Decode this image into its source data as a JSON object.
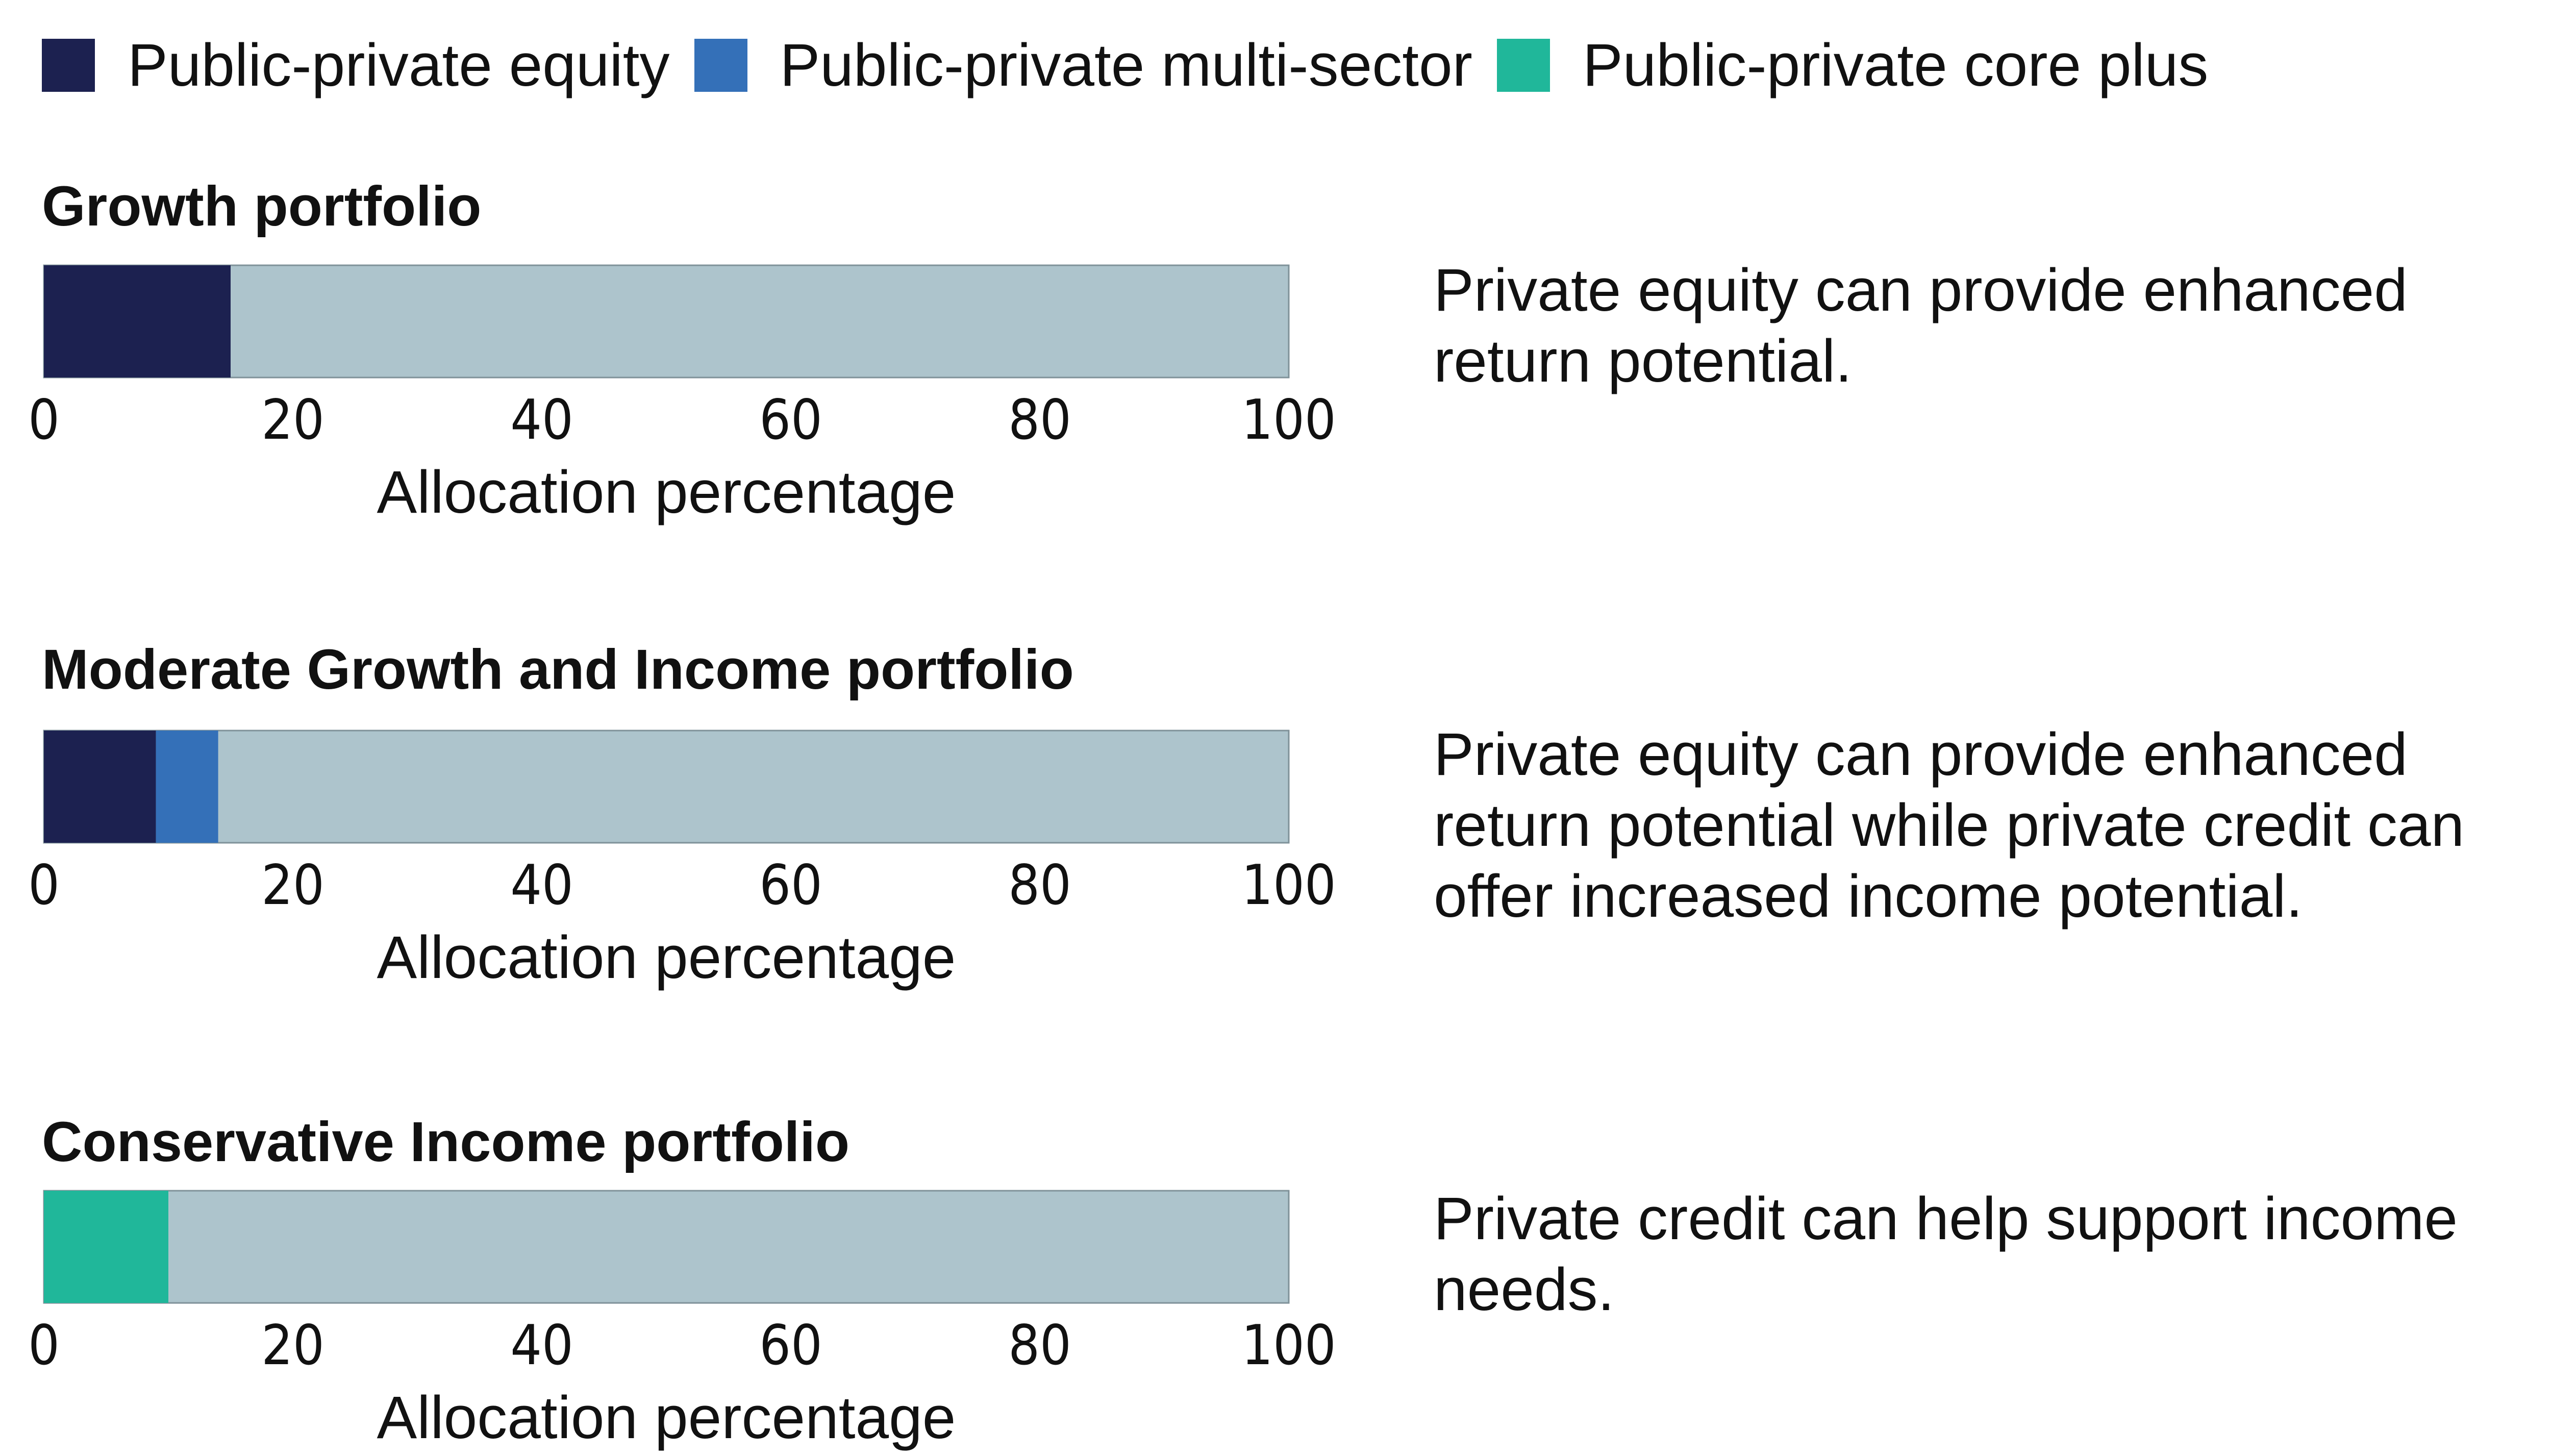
{
  "legend": {
    "items": [
      {
        "label": "Public-private equity",
        "color": "#1c2150"
      },
      {
        "label": "Public-private multi-sector",
        "color": "#3470b8"
      },
      {
        "label": "Public-private core plus",
        "color": "#20b79a"
      }
    ]
  },
  "chart_data": [
    {
      "type": "bar",
      "stacked": true,
      "orientation": "horizontal",
      "title": "Growth portfolio",
      "xlabel": "Allocation percentage",
      "xlim": [
        0,
        100
      ],
      "xticks": [
        "0",
        "20",
        "40",
        "60",
        "80",
        "100"
      ],
      "background_color": "#adc4cc",
      "series": [
        {
          "name": "Public-private equity",
          "values": [
            15
          ],
          "color": "#1c2150"
        }
      ]
    },
    {
      "type": "bar",
      "stacked": true,
      "orientation": "horizontal",
      "title": "Moderate Growth and Income portfolio",
      "xlabel": "Allocation percentage",
      "xlim": [
        0,
        100
      ],
      "xticks": [
        "0",
        "20",
        "40",
        "60",
        "80",
        "100"
      ],
      "background_color": "#adc4cc",
      "series": [
        {
          "name": "Public-private equity",
          "values": [
            9
          ],
          "color": "#1c2150"
        },
        {
          "name": "Public-private multi-sector",
          "values": [
            5
          ],
          "color": "#3470b8"
        }
      ]
    },
    {
      "type": "bar",
      "stacked": true,
      "orientation": "horizontal",
      "title": "Conservative Income portfolio",
      "xlabel": "Allocation percentage",
      "xlim": [
        0,
        100
      ],
      "xticks": [
        "0",
        "20",
        "40",
        "60",
        "80",
        "100"
      ],
      "background_color": "#adc4cc",
      "series": [
        {
          "name": "Public-private core plus",
          "values": [
            10
          ],
          "color": "#20b79a"
        }
      ]
    }
  ],
  "notes": [
    "Private equity can provide enhanced return potential.",
    "Private equity can provide enhanced return potential while private credit can offer increased income potential.",
    "Private credit can help support income needs."
  ]
}
